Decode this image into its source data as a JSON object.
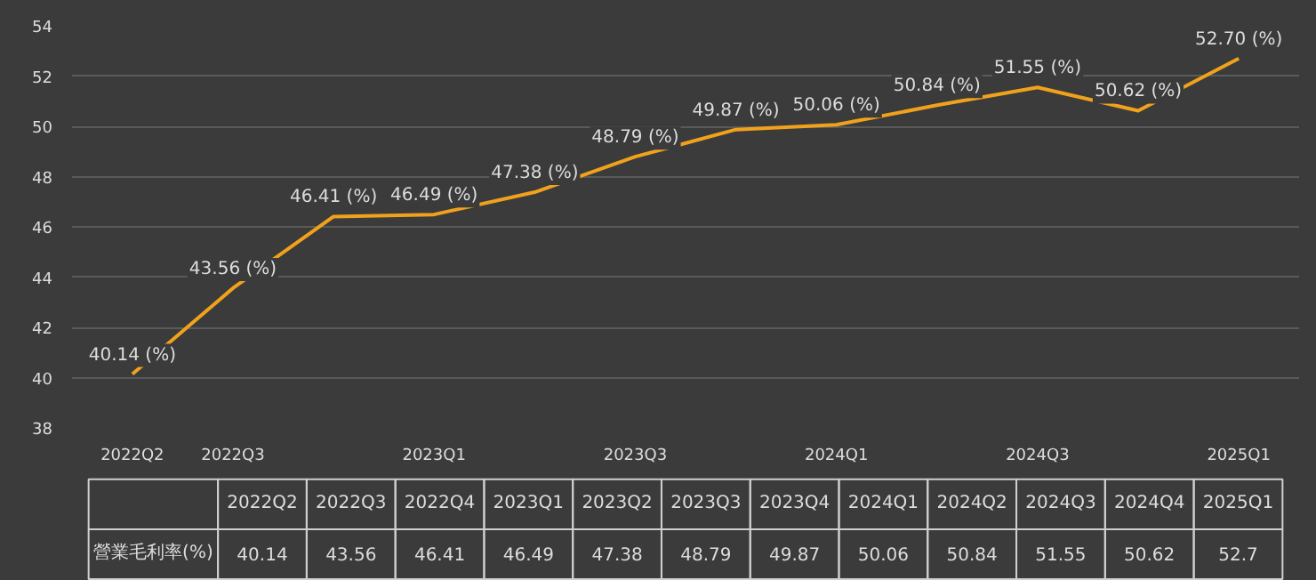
{
  "chart_data": [
    {
      "type": "line",
      "categories": [
        "2022Q2",
        "2022Q3",
        null,
        "2023Q1",
        null,
        "2023Q3",
        null,
        "2024Q1",
        null,
        "2024Q3",
        null,
        "2025Q1"
      ],
      "series": [
        {
          "color": "#f0a21c",
          "values": [
            40.14,
            43.56,
            46.41,
            46.49,
            47.38,
            48.79,
            49.87,
            50.06,
            50.84,
            51.55,
            50.62,
            52.7
          ],
          "value_labels": [
            "40.14 (%)",
            "43.56 (%)",
            "46.41 (%)",
            "46.49 (%)",
            "47.38 (%)",
            "48.79 (%)",
            "49.87 (%)",
            "50.06 (%)",
            "50.84 (%)",
            "51.55 (%)",
            "50.62 (%)",
            "52.70 (%)"
          ]
        }
      ],
      "ylim": [
        38,
        54
      ],
      "yticks": [
        38,
        40,
        42,
        44,
        46,
        48,
        50,
        52,
        54
      ],
      "grid": "y",
      "marker": "none",
      "line_style": "solid"
    },
    {
      "type": "other",
      "categories": [
        "2022Q2",
        "2022Q3",
        "2022Q4",
        "2023Q1",
        "2023Q2",
        "2023Q3",
        "2023Q4",
        "2024Q1",
        "2024Q2",
        "2024Q3",
        "2024Q4",
        "2025Q1"
      ],
      "series": [
        {
          "name": "營業毛利率(%)",
          "values": [
            40.14,
            43.56,
            46.41,
            46.49,
            47.38,
            48.79,
            49.87,
            50.06,
            50.84,
            51.55,
            50.62,
            52.7
          ]
        }
      ],
      "data_labels": true
    }
  ]
}
